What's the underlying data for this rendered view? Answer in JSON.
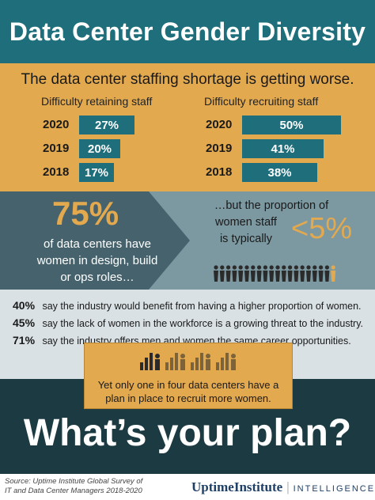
{
  "header": {
    "title": "Data Center Gender Diversity"
  },
  "shortage": {
    "subtitle": "The data center staffing shortage is getting worse."
  },
  "chart_data": [
    {
      "type": "bar",
      "title": "Difficulty retaining staff",
      "categories": [
        "2020",
        "2019",
        "2018"
      ],
      "values": [
        27,
        20,
        17
      ],
      "labels": [
        "27%",
        "20%",
        "17%"
      ],
      "unit": "%",
      "color": "#1e6f7b"
    },
    {
      "type": "bar",
      "title": "Difficulty recruiting staff",
      "categories": [
        "2020",
        "2019",
        "2018"
      ],
      "values": [
        50,
        41,
        38
      ],
      "labels": [
        "50%",
        "41%",
        "38%"
      ],
      "unit": "%",
      "color": "#1e6f7b"
    }
  ],
  "women_design": {
    "big_value": "75%",
    "text": "of data centers have women in design, build or ops roles…"
  },
  "women_staff": {
    "line1": "…but the proportion of",
    "line2": "women staff",
    "line3": "is typically",
    "value": "<5%",
    "people_count": 20,
    "highlighted_count": 1,
    "icon": "people-icon"
  },
  "stats": [
    {
      "pct": "40%",
      "text": "say the industry would benefit from having a higher proportion of women."
    },
    {
      "pct": "45%",
      "text": "say the lack of women in the workforce is a growing threat to the industry."
    },
    {
      "pct": "71%",
      "text": "say the industry offers men and women the same career opportunities."
    }
  ],
  "callout": {
    "text_line1": "Yet only one in four data centers have a",
    "text_line2": "plan in place to recruit more women.",
    "icon": "growth-chart-people-icon"
  },
  "closing": {
    "headline": "What’s your plan?"
  },
  "footer": {
    "source_line1": "Source: Uptime Institute Global Survey of",
    "source_line2": "IT and Data Center Managers 2018-2020",
    "brand": "UptimeInstitute",
    "brand_division": "INTELLIGENCE"
  },
  "colors": {
    "teal": "#1e6f7b",
    "gold": "#e3a94f",
    "dark": "#1c3a42",
    "slate": "#7c98a1"
  }
}
